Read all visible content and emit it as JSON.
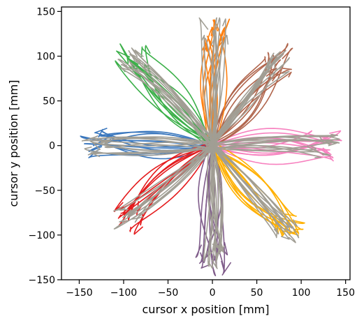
{
  "chart_data": {
    "type": "line",
    "title": "",
    "xlabel": "cursor x position [mm]",
    "ylabel": "cursor y position [mm]",
    "xlim": [
      -170,
      155
    ],
    "ylim": [
      -150,
      155
    ],
    "xticks": [
      -150,
      -100,
      -50,
      0,
      50,
      100,
      150
    ],
    "yticks": [
      -150,
      -100,
      -50,
      0,
      50,
      100,
      150
    ],
    "xtick_labels": [
      "−150",
      "−100",
      "−50",
      "0",
      "50",
      "100",
      "150"
    ],
    "ytick_labels": [
      "−150",
      "−100",
      "−50",
      "0",
      "50",
      "100",
      "150"
    ],
    "grid": false,
    "legend": "none",
    "trials_per_direction": 12,
    "series": [
      {
        "direction_deg": 0,
        "color": "#f781bf",
        "endpoint": [
          125,
          0
        ]
      },
      {
        "direction_deg": 45,
        "color": "#b0654c",
        "endpoint": [
          75,
          90
        ]
      },
      {
        "direction_deg": 90,
        "color": "#ff7f0e",
        "endpoint": [
          2,
          125
        ]
      },
      {
        "direction_deg": 135,
        "color": "#3cb04a",
        "endpoint": [
          -90,
          95
        ]
      },
      {
        "direction_deg": 180,
        "color": "#3a77bd",
        "endpoint": [
          -130,
          0
        ]
      },
      {
        "direction_deg": 225,
        "color": "#e41a1c",
        "endpoint": [
          -95,
          -80
        ]
      },
      {
        "direction_deg": 270,
        "color": "#7f5c8a",
        "endpoint": [
          2,
          -125
        ]
      },
      {
        "direction_deg": 315,
        "color": "#ffb000",
        "endpoint": [
          85,
          -90
        ]
      }
    ],
    "overlay_color": "#a19e94"
  }
}
